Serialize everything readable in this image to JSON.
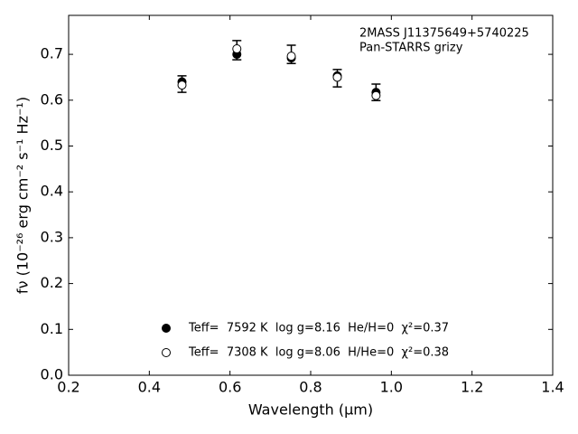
{
  "chart_data": {
    "type": "scatter",
    "annotation": [
      "2MASS J11375649+5740225",
      "Pan-STARRS grizy"
    ],
    "x_label": "Wavelength (μm)",
    "y_label": "fν (10⁻²⁶ erg cm⁻² s⁻¹ Hz⁻¹)",
    "x": [
      0.481,
      0.617,
      0.752,
      0.866,
      0.962
    ],
    "observed": {
      "values": [
        0.635,
        0.709,
        0.7,
        0.648,
        0.617
      ],
      "errors": [
        0.018,
        0.021,
        0.02,
        0.019,
        0.018
      ],
      "color": "#000000"
    },
    "series": [
      {
        "name": "Teff=  7592 K  log g=8.16  He/H=0  χ²=0.37",
        "color": "#000000",
        "marker": "filled",
        "values": [
          0.64,
          0.7,
          0.692,
          0.653,
          0.617
        ]
      },
      {
        "name": "Teff=  7308 K  log g=8.06  H/He=0  χ²=0.38",
        "color": "#000000",
        "marker": "open",
        "values": [
          0.633,
          0.712,
          0.696,
          0.65,
          0.61
        ]
      }
    ],
    "xlim": [
      0.2,
      1.4
    ],
    "xticks": [
      0.2,
      0.4,
      0.6,
      0.8,
      1.0,
      1.2,
      1.4
    ],
    "ylim": [
      0,
      0.785
    ],
    "yticks": [
      {
        "value": 0,
        "label": "0.0"
      },
      0.1,
      0.2,
      0.3,
      0.4,
      0.5,
      0.6,
      0.7
    ],
    "xticks_labels": [
      "0.2",
      "0.4",
      "0.6",
      "0.8",
      "1.0",
      "1.2",
      "1.4"
    ]
  }
}
